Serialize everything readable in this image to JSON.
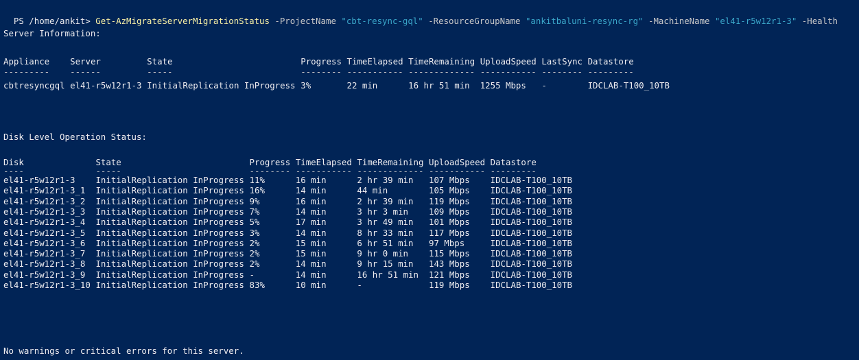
{
  "terminal": {
    "colors": {
      "background": "#012456",
      "text": "#eeedf0",
      "cmdlet": "#f9f1a5",
      "string": "#3aa6c9",
      "parameter": "#c8c8c8"
    },
    "prompt": "PS /home/ankit> ",
    "command": {
      "cmdlet": "Get-AzMigrateServerMigrationStatus",
      "args": [
        {
          "name": " -ProjectName",
          "value": " \"cbt-resync-gql\""
        },
        {
          "name": " -ResourceGroupName",
          "value": " \"ankitbaluni-resync-rg\""
        },
        {
          "name": " -MachineName",
          "value": " \"el41-r5w12r1-3\""
        },
        {
          "name": " -Health",
          "value": ""
        }
      ]
    }
  },
  "server_info": {
    "title": "Server Information:",
    "headers": [
      "Appliance",
      "Server",
      "State",
      "Progress",
      "TimeElapsed",
      "TimeRemaining",
      "UploadSpeed",
      "LastSync",
      "Datastore"
    ],
    "underlines": [
      "---------",
      "------",
      "-----",
      "--------",
      "-----------",
      "-------------",
      "-----------",
      "--------",
      "---------"
    ],
    "rows": [
      [
        "cbtresyncgql",
        "el41-r5w12r1-3",
        "InitialReplication InProgress",
        "3%",
        "22 min",
        "16 hr 51 min",
        "1255 Mbps",
        "-",
        "IDCLAB-T100_10TB"
      ]
    ]
  },
  "disk_status": {
    "title": "Disk Level Operation Status:",
    "headers": [
      "Disk",
      "State",
      "Progress",
      "TimeElapsed",
      "TimeRemaining",
      "UploadSpeed",
      "Datastore"
    ],
    "underlines": [
      "----",
      "-----",
      "--------",
      "-----------",
      "-------------",
      "-----------",
      "---------"
    ],
    "rows": [
      [
        "el41-r5w12r1-3",
        "InitialReplication InProgress",
        "11%",
        "16 min",
        "2 hr 39 min",
        "107 Mbps",
        "IDCLAB-T100_10TB"
      ],
      [
        "el41-r5w12r1-3_1",
        "InitialReplication InProgress",
        "16%",
        "14 min",
        "44 min",
        "105 Mbps",
        "IDCLAB-T100_10TB"
      ],
      [
        "el41-r5w12r1-3_2",
        "InitialReplication InProgress",
        "9%",
        "16 min",
        "2 hr 39 min",
        "119 Mbps",
        "IDCLAB-T100_10TB"
      ],
      [
        "el41-r5w12r1-3_3",
        "InitialReplication InProgress",
        "7%",
        "14 min",
        "3 hr 3 min",
        "109 Mbps",
        "IDCLAB-T100_10TB"
      ],
      [
        "el41-r5w12r1-3_4",
        "InitialReplication InProgress",
        "5%",
        "17 min",
        "3 hr 49 min",
        "101 Mbps",
        "IDCLAB-T100_10TB"
      ],
      [
        "el41-r5w12r1-3_5",
        "InitialReplication InProgress",
        "3%",
        "14 min",
        "8 hr 33 min",
        "117 Mbps",
        "IDCLAB-T100_10TB"
      ],
      [
        "el41-r5w12r1-3_6",
        "InitialReplication InProgress",
        "2%",
        "15 min",
        "6 hr 51 min",
        "97 Mbps",
        "IDCLAB-T100_10TB"
      ],
      [
        "el41-r5w12r1-3_7",
        "InitialReplication InProgress",
        "2%",
        "15 min",
        "9 hr 0 min",
        "115 Mbps",
        "IDCLAB-T100_10TB"
      ],
      [
        "el41-r5w12r1-3_8",
        "InitialReplication InProgress",
        "2%",
        "14 min",
        "9 hr 15 min",
        "143 Mbps",
        "IDCLAB-T100_10TB"
      ],
      [
        "el41-r5w12r1-3_9",
        "InitialReplication InProgress",
        "-",
        "14 min",
        "16 hr 51 min",
        "121 Mbps",
        "IDCLAB-T100_10TB"
      ],
      [
        "el41-r5w12r1-3_10",
        "InitialReplication InProgress",
        "83%",
        "10 min",
        "-",
        "119 Mbps",
        "IDCLAB-T100_10TB"
      ]
    ]
  },
  "footer": "No warnings or critical errors for this server."
}
